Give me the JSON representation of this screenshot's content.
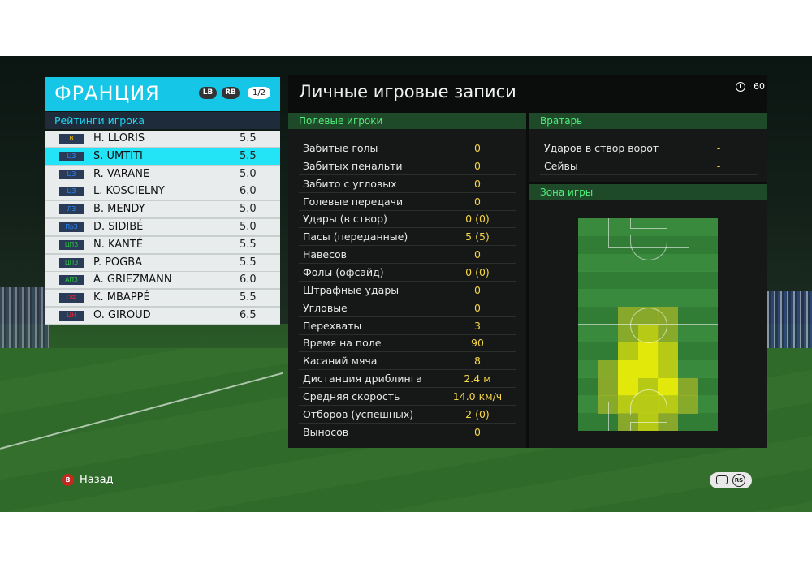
{
  "team": {
    "name": "ФРАНЦИЯ",
    "lb": "LB",
    "rb": "RB",
    "page": "1/2"
  },
  "ratings_title": "Рейтинги игрока",
  "players": [
    {
      "pos": "В",
      "pos_color": "#f0c400",
      "name": "H. LLORIS",
      "rating": "5.5",
      "selected": false
    },
    {
      "pos": "ЦЗ",
      "pos_color": "#2b8cff",
      "name": "S. UMTITI",
      "rating": "5.5",
      "selected": true
    },
    {
      "pos": "ЦЗ",
      "pos_color": "#2b8cff",
      "name": "R. VARANE",
      "rating": "5.0",
      "selected": false
    },
    {
      "pos": "ЦЗ",
      "pos_color": "#2b8cff",
      "name": "L. KOSCIELNY",
      "rating": "6.0",
      "selected": false
    },
    {
      "pos": "ЛЗ",
      "pos_color": "#2b8cff",
      "name": "B. MENDY",
      "rating": "5.0",
      "selected": false
    },
    {
      "pos": "ПрЗ",
      "pos_color": "#2b8cff",
      "name": "D. SIDIBÉ",
      "rating": "5.0",
      "selected": false
    },
    {
      "pos": "ЦПЗ",
      "pos_color": "#2cc640",
      "name": "N. KANTÉ",
      "rating": "5.5",
      "selected": false
    },
    {
      "pos": "ЦПЗ",
      "pos_color": "#2cc640",
      "name": "P. POGBA",
      "rating": "5.5",
      "selected": false
    },
    {
      "pos": "АПЗ",
      "pos_color": "#2cc640",
      "name": "A. GRIEZMANN",
      "rating": "6.0",
      "selected": false
    },
    {
      "pos": "ОФ",
      "pos_color": "#e8283c",
      "name": "K. MBAPPÉ",
      "rating": "5.5",
      "selected": false
    },
    {
      "pos": "ЦН",
      "pos_color": "#e8283c",
      "name": "O. GIROUD",
      "rating": "6.5",
      "selected": false
    }
  ],
  "main_title": "Личные игровые записи",
  "timer": "60",
  "outfield": {
    "title": "Полевые игроки",
    "stats": [
      {
        "label": "Забитые голы",
        "value": "0"
      },
      {
        "label": "Забитых пенальти",
        "value": "0"
      },
      {
        "label": "Забито с угловых",
        "value": "0"
      },
      {
        "label": "Голевые передачи",
        "value": "0"
      },
      {
        "label": "Удары (в створ)",
        "value": "0 (0)"
      },
      {
        "label": "Пасы (переданные)",
        "value": "5 (5)"
      },
      {
        "label": "Навесов",
        "value": "0"
      },
      {
        "label": "Фолы (офсайд)",
        "value": "0 (0)"
      },
      {
        "label": "Штрафные удары",
        "value": "0"
      },
      {
        "label": "Угловые",
        "value": "0"
      },
      {
        "label": "Перехваты",
        "value": "3"
      },
      {
        "label": "Время на поле",
        "value": "90"
      },
      {
        "label": "Касаний мяча",
        "value": "8"
      },
      {
        "label": "Дистанция дриблинга",
        "value": "2.4 м"
      },
      {
        "label": "Средняя скорость",
        "value": "14.0 км/ч"
      },
      {
        "label": "Отборов (успешных)",
        "value": "2 (0)"
      },
      {
        "label": "Выносов",
        "value": "0"
      }
    ]
  },
  "goalkeeper": {
    "title": "Вратарь",
    "stats": [
      {
        "label": "Ударов в створ ворот",
        "value": "-"
      },
      {
        "label": "Сейвы",
        "value": "-"
      }
    ]
  },
  "zone": {
    "title": "Зона игры",
    "heat_cells": [
      {
        "col": 2,
        "row": 5,
        "level": 1
      },
      {
        "col": 3,
        "row": 5,
        "level": 1
      },
      {
        "col": 4,
        "row": 5,
        "level": 1
      },
      {
        "col": 2,
        "row": 6,
        "level": 1
      },
      {
        "col": 3,
        "row": 6,
        "level": 2
      },
      {
        "col": 4,
        "row": 6,
        "level": 1
      },
      {
        "col": 2,
        "row": 7,
        "level": 2
      },
      {
        "col": 3,
        "row": 7,
        "level": 3
      },
      {
        "col": 4,
        "row": 7,
        "level": 2
      },
      {
        "col": 1,
        "row": 8,
        "level": 1
      },
      {
        "col": 2,
        "row": 8,
        "level": 3
      },
      {
        "col": 3,
        "row": 8,
        "level": 3
      },
      {
        "col": 4,
        "row": 8,
        "level": 2
      },
      {
        "col": 1,
        "row": 9,
        "level": 1
      },
      {
        "col": 2,
        "row": 9,
        "level": 3
      },
      {
        "col": 3,
        "row": 9,
        "level": 2
      },
      {
        "col": 4,
        "row": 9,
        "level": 3
      },
      {
        "col": 5,
        "row": 9,
        "level": 1
      },
      {
        "col": 1,
        "row": 10,
        "level": 1
      },
      {
        "col": 2,
        "row": 10,
        "level": 2
      },
      {
        "col": 3,
        "row": 10,
        "level": 2
      },
      {
        "col": 4,
        "row": 10,
        "level": 2
      },
      {
        "col": 5,
        "row": 10,
        "level": 1
      },
      {
        "col": 2,
        "row": 11,
        "level": 1
      },
      {
        "col": 3,
        "row": 11,
        "level": 2
      },
      {
        "col": 4,
        "row": 11,
        "level": 1
      }
    ]
  },
  "footer": {
    "back_icon": "B",
    "back_label": "Назад",
    "rs_icon": "RS"
  },
  "colors": {
    "accent_cyan": "#16c6e6",
    "value_yellow": "#f5d64a",
    "section_green": "#50f07a"
  }
}
